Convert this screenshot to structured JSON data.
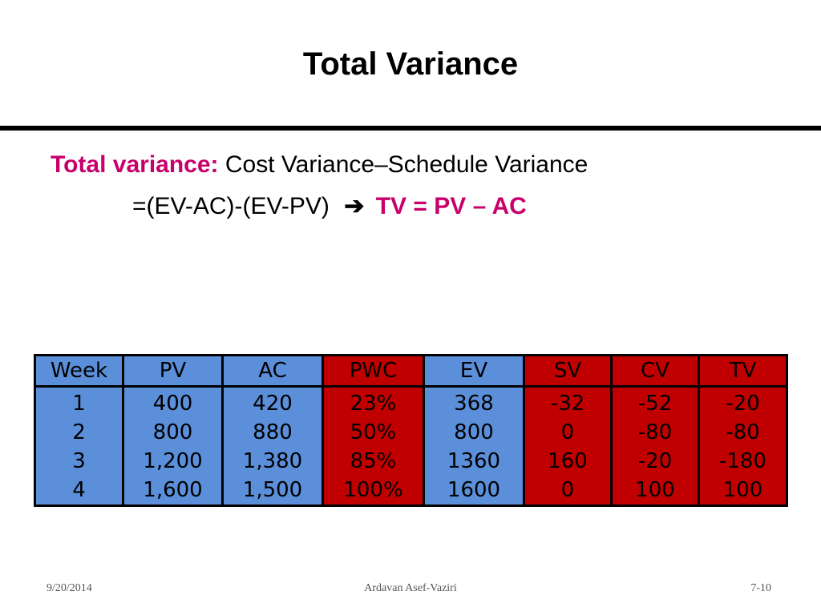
{
  "slide": {
    "title": "Total Variance",
    "definition_label": "Total variance:",
    "definition_text": "Cost Variance–Schedule Variance",
    "formula_text": "=(EV-AC)-(EV-PV)",
    "arrow_icon": "right-arrow-icon",
    "result_text": "TV = PV – AC"
  },
  "colors": {
    "blue": "#5b8fd9",
    "red": "#c00000",
    "accent": "#c8006b"
  },
  "table": {
    "headers": [
      "Week",
      "PV",
      "AC",
      "PWC",
      "EV",
      "SV",
      "CV",
      "TV"
    ],
    "rows": [
      [
        "1",
        "400",
        "420",
        "23%",
        "368",
        "-32",
        "-52",
        "-20"
      ],
      [
        "2",
        "800",
        "880",
        "50%",
        "800",
        "0",
        "-80",
        "-80"
      ],
      [
        "3",
        "1,200",
        "1,380",
        "85%",
        "1360",
        "160",
        "-20",
        "-180"
      ],
      [
        "4",
        "1,600",
        "1,500",
        "100%",
        "1600",
        "0",
        "100",
        "100"
      ]
    ]
  },
  "footer": {
    "date": "9/20/2014",
    "author": "Ardavan Asef-Vaziri",
    "page": "7-10"
  }
}
